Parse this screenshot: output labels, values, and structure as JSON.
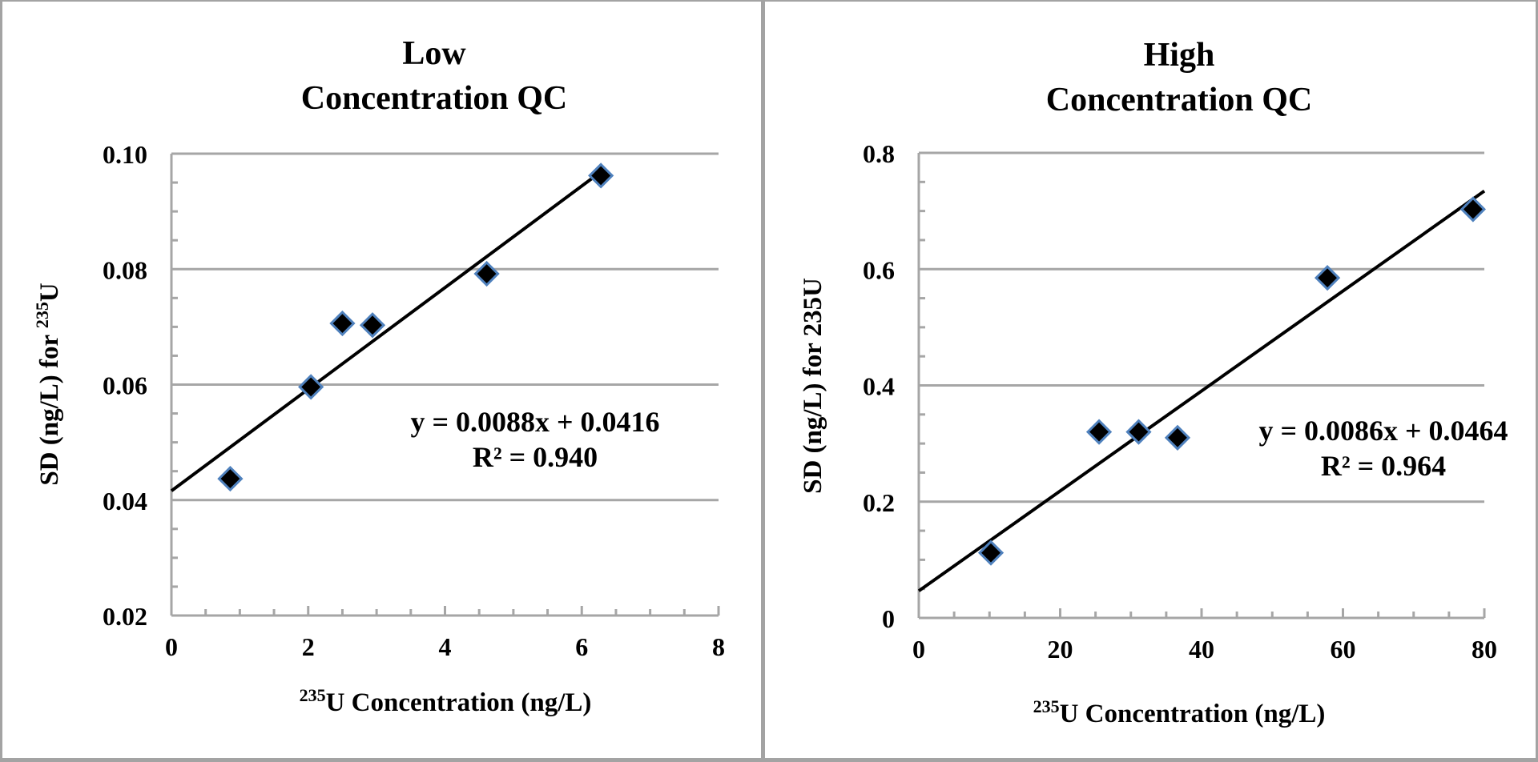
{
  "chart_data": [
    {
      "id": "low",
      "type": "scatter",
      "title": [
        "Low",
        "Concentration QC"
      ],
      "xlabel": {
        "sup": "235",
        "text": "U Concentration (ng/L)"
      },
      "ylabel": {
        "text": "SD (ng/L) for ",
        "sup": "235",
        "tail": "U"
      },
      "xlim": [
        0,
        8
      ],
      "ylim": [
        0.02,
        0.1
      ],
      "x_major": 2,
      "x_minor": 0.5,
      "y_major": 0.02,
      "y_minor": 0.005,
      "x_tick_labels": [
        "0",
        "2",
        "4",
        "6",
        "8"
      ],
      "y_tick_labels": [
        "0.02",
        "0.04",
        "0.06",
        "0.08",
        "0.10"
      ],
      "grid": "horizontal-major",
      "series": [
        {
          "name": "Low Concentration QC",
          "marker": "diamond",
          "x": [
            0.86,
            2.04,
            2.5,
            2.94,
            4.61,
            6.28
          ],
          "y": [
            0.0437,
            0.0596,
            0.0706,
            0.0703,
            0.0792,
            0.0962
          ]
        }
      ],
      "trendline": {
        "slope": 0.0088,
        "intercept": 0.0416,
        "x_range": [
          0,
          6.28
        ],
        "equation": "y = 0.0088x + 0.0416",
        "r2": "R² = 0.940"
      }
    },
    {
      "id": "high",
      "type": "scatter",
      "title": [
        "High",
        "Concentration QC"
      ],
      "xlabel": {
        "sup": "235",
        "text": "U Concentration (ng/L)"
      },
      "ylabel": {
        "text": "SD (ng/L) for 235U",
        "sup": "",
        "tail": ""
      },
      "xlim": [
        0,
        80
      ],
      "ylim": [
        0,
        0.8
      ],
      "x_major": 20,
      "x_minor": 5,
      "y_major": 0.2,
      "y_minor": 0.05,
      "x_tick_labels": [
        "0",
        "20",
        "40",
        "60",
        "80"
      ],
      "y_tick_labels": [
        "0",
        "0.2",
        "0.4",
        "0.6",
        "0.8"
      ],
      "grid": "horizontal-major",
      "series": [
        {
          "name": "High Concentration QC",
          "marker": "diamond",
          "x": [
            10.2,
            25.5,
            31.1,
            36.6,
            57.8,
            78.4
          ],
          "y": [
            0.112,
            0.32,
            0.32,
            0.31,
            0.585,
            0.703
          ]
        }
      ],
      "trendline": {
        "slope": 0.0086,
        "intercept": 0.0464,
        "x_range": [
          0,
          80
        ],
        "equation": "y = 0.0086x + 0.0464",
        "r2": "R² = 0.964"
      }
    }
  ],
  "colors": {
    "marker_fill": "#000000",
    "marker_edge": "#4f81bd",
    "trendline": "#000000",
    "grid": "#a6a6a6",
    "frame": "#a3a3a3"
  }
}
